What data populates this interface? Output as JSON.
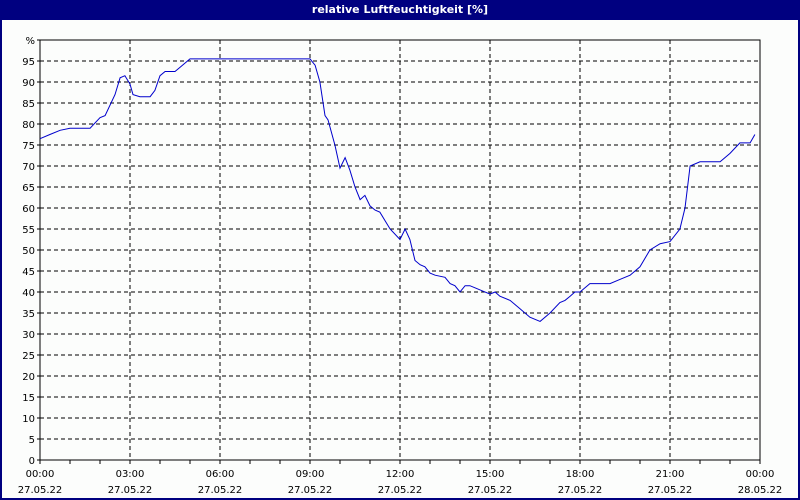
{
  "window": {
    "title": "relative Luftfeuchtigkeit [%]"
  },
  "colors": {
    "title_bar": "#000080",
    "line": "#0000cc",
    "grid": "#000000",
    "background": "#fcfdfc"
  },
  "chart_data": {
    "type": "line",
    "title": "relative Luftfeuchtigkeit [%]",
    "ylabel": "%",
    "xlabel": "",
    "ylim": [
      0,
      100
    ],
    "xlim_hours": [
      0,
      24
    ],
    "grid": true,
    "y_ticks": [
      "0",
      "5",
      "10",
      "15",
      "20",
      "25",
      "30",
      "35",
      "40",
      "45",
      "50",
      "55",
      "60",
      "65",
      "70",
      "75",
      "80",
      "85",
      "90",
      "95",
      "%"
    ],
    "x_ticks": [
      {
        "time": "00:00",
        "date": "27.05.22"
      },
      {
        "time": "03:00",
        "date": "27.05.22"
      },
      {
        "time": "06:00",
        "date": "27.05.22"
      },
      {
        "time": "09:00",
        "date": "27.05.22"
      },
      {
        "time": "12:00",
        "date": "27.05.22"
      },
      {
        "time": "15:00",
        "date": "27.05.22"
      },
      {
        "time": "18:00",
        "date": "27.05.22"
      },
      {
        "time": "21:00",
        "date": "27.05.22"
      },
      {
        "time": "00:00",
        "date": "28.05.22"
      }
    ],
    "series": [
      {
        "name": "relative Luftfeuchtigkeit",
        "x_hours": [
          0,
          0.33,
          0.67,
          1.0,
          1.33,
          1.67,
          2.0,
          2.17,
          2.5,
          2.67,
          2.83,
          3.0,
          3.1,
          3.33,
          3.67,
          3.83,
          4.0,
          4.17,
          4.5,
          4.67,
          5.0,
          6.0,
          7.0,
          8.0,
          9.0,
          9.17,
          9.33,
          9.5,
          9.6,
          9.83,
          10.0,
          10.17,
          10.33,
          10.5,
          10.67,
          10.83,
          11.0,
          11.17,
          11.33,
          11.5,
          11.67,
          12.0,
          12.17,
          12.33,
          12.5,
          12.67,
          12.83,
          13.0,
          13.17,
          13.5,
          13.67,
          13.83,
          14.0,
          14.17,
          14.33,
          14.5,
          14.67,
          15.0,
          15.17,
          15.33,
          15.67,
          16.0,
          16.33,
          16.67,
          17.0,
          17.33,
          17.5,
          17.67,
          17.83,
          18.0,
          18.33,
          18.5,
          18.67,
          19.0,
          19.33,
          19.67,
          20.0,
          20.33,
          20.67,
          21.0,
          21.33,
          21.5,
          21.67,
          22.0,
          22.33,
          22.67,
          23.0,
          23.33,
          23.67,
          23.83
        ],
        "values": [
          76.5,
          77.5,
          78.5,
          79,
          79,
          79,
          81.5,
          82,
          87,
          91,
          91.5,
          89.5,
          87,
          86.5,
          86.5,
          88,
          91.5,
          92.5,
          92.5,
          93.5,
          95.5,
          95.5,
          95.5,
          95.5,
          95.5,
          94,
          90,
          82,
          81,
          75,
          69.5,
          72,
          69,
          65,
          62,
          63,
          60.5,
          59.5,
          59,
          57,
          55,
          52.5,
          55,
          52.5,
          47.5,
          46.5,
          46,
          44.5,
          44,
          43.5,
          42,
          41.5,
          40,
          41.5,
          41.5,
          41,
          40.5,
          39.5,
          40,
          39,
          38,
          36,
          34,
          33,
          35,
          37.5,
          38,
          39,
          40,
          40,
          42,
          42,
          42,
          42,
          43,
          44,
          46,
          50,
          51.5,
          52,
          55,
          60,
          70,
          71,
          71,
          71,
          73,
          75.5,
          75.5,
          77.5
        ]
      }
    ]
  }
}
